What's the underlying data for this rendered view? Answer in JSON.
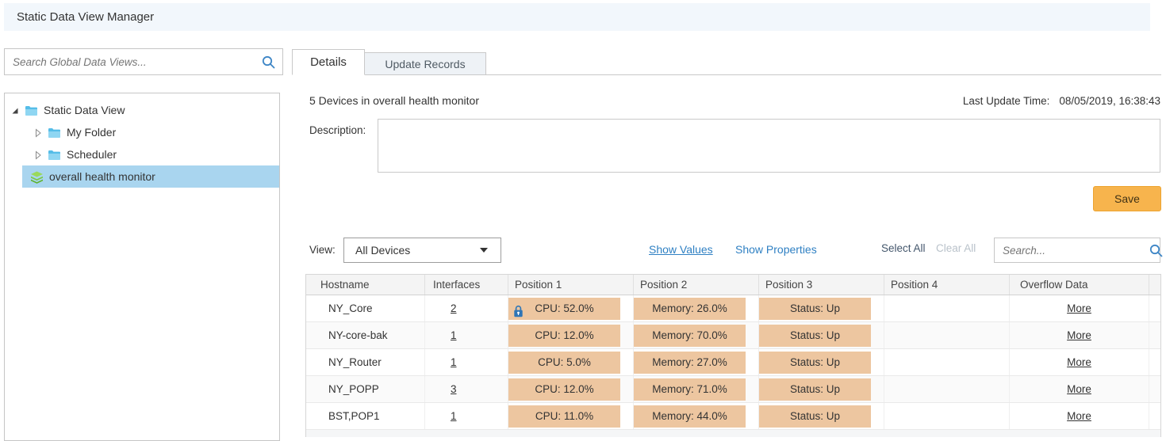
{
  "title": "Static Data View Manager",
  "sidebar": {
    "search_placeholder": "Search Global Data Views...",
    "tree": [
      {
        "label": "Static Data View",
        "level": 0,
        "expander": "expanded",
        "icon": "folder",
        "selected": false
      },
      {
        "label": "My Folder",
        "level": 1,
        "expander": "collapsed",
        "icon": "folder",
        "selected": false
      },
      {
        "label": "Scheduler",
        "level": 1,
        "expander": "collapsed",
        "icon": "folder",
        "selected": false
      },
      {
        "label": "overall health monitor",
        "level": 1,
        "expander": "none",
        "icon": "layers",
        "selected": true
      }
    ]
  },
  "tabs": {
    "details": "Details",
    "update_records": "Update Records"
  },
  "details": {
    "device_summary": "5 Devices in overall health monitor",
    "last_update_label": "Last Update Time:",
    "last_update_value": "08/05/2019, 16:38:43",
    "description_label": "Description:",
    "description_value": "",
    "save_label": "Save"
  },
  "toolbar": {
    "view_label": "View:",
    "view_selected": "All Devices",
    "show_values": "Show Values",
    "show_properties": "Show Properties",
    "select_all": "Select All",
    "clear_all": "Clear All",
    "search_placeholder": "Search..."
  },
  "table": {
    "columns": [
      "Hostname",
      "Interfaces",
      "Position 1",
      "Position 2",
      "Position 3",
      "Position 4",
      "Overflow Data"
    ],
    "more_label": "More",
    "rows": [
      {
        "hostname": "NY_Core",
        "interfaces": "2",
        "position1": "CPU: 52.0%",
        "position1_locked": true,
        "position2": "Memory: 26.0%",
        "position3": "Status: Up",
        "position4": "",
        "overflow": "More"
      },
      {
        "hostname": "NY-core-bak",
        "interfaces": "1",
        "position1": "CPU: 12.0%",
        "position1_locked": false,
        "position2": "Memory: 70.0%",
        "position3": "Status: Up",
        "position4": "",
        "overflow": "More"
      },
      {
        "hostname": "NY_Router",
        "interfaces": "1",
        "position1": "CPU: 5.0%",
        "position1_locked": false,
        "position2": "Memory: 27.0%",
        "position3": "Status: Up",
        "position4": "",
        "overflow": "More"
      },
      {
        "hostname": "NY_POPP",
        "interfaces": "3",
        "position1": "CPU: 12.0%",
        "position1_locked": false,
        "position2": "Memory: 71.0%",
        "position3": "Status: Up",
        "position4": "",
        "overflow": "More"
      },
      {
        "hostname": "BST,POP1",
        "interfaces": "1",
        "position1": "CPU: 11.0%",
        "position1_locked": false,
        "position2": "Memory: 44.0%",
        "position3": "Status: Up",
        "position4": "",
        "overflow": "More"
      }
    ]
  },
  "colors": {
    "topbar_bg": "#f2f7fc",
    "selected_tree_bg": "#a9d5ef",
    "value_chip_bg": "#edc6a0",
    "save_button_bg": "#f7b44d",
    "link_blue": "#2f80c3",
    "lock_blue": "#2e75b6",
    "layers_green": "#7cc943",
    "folder_blue": "#55bde8"
  }
}
